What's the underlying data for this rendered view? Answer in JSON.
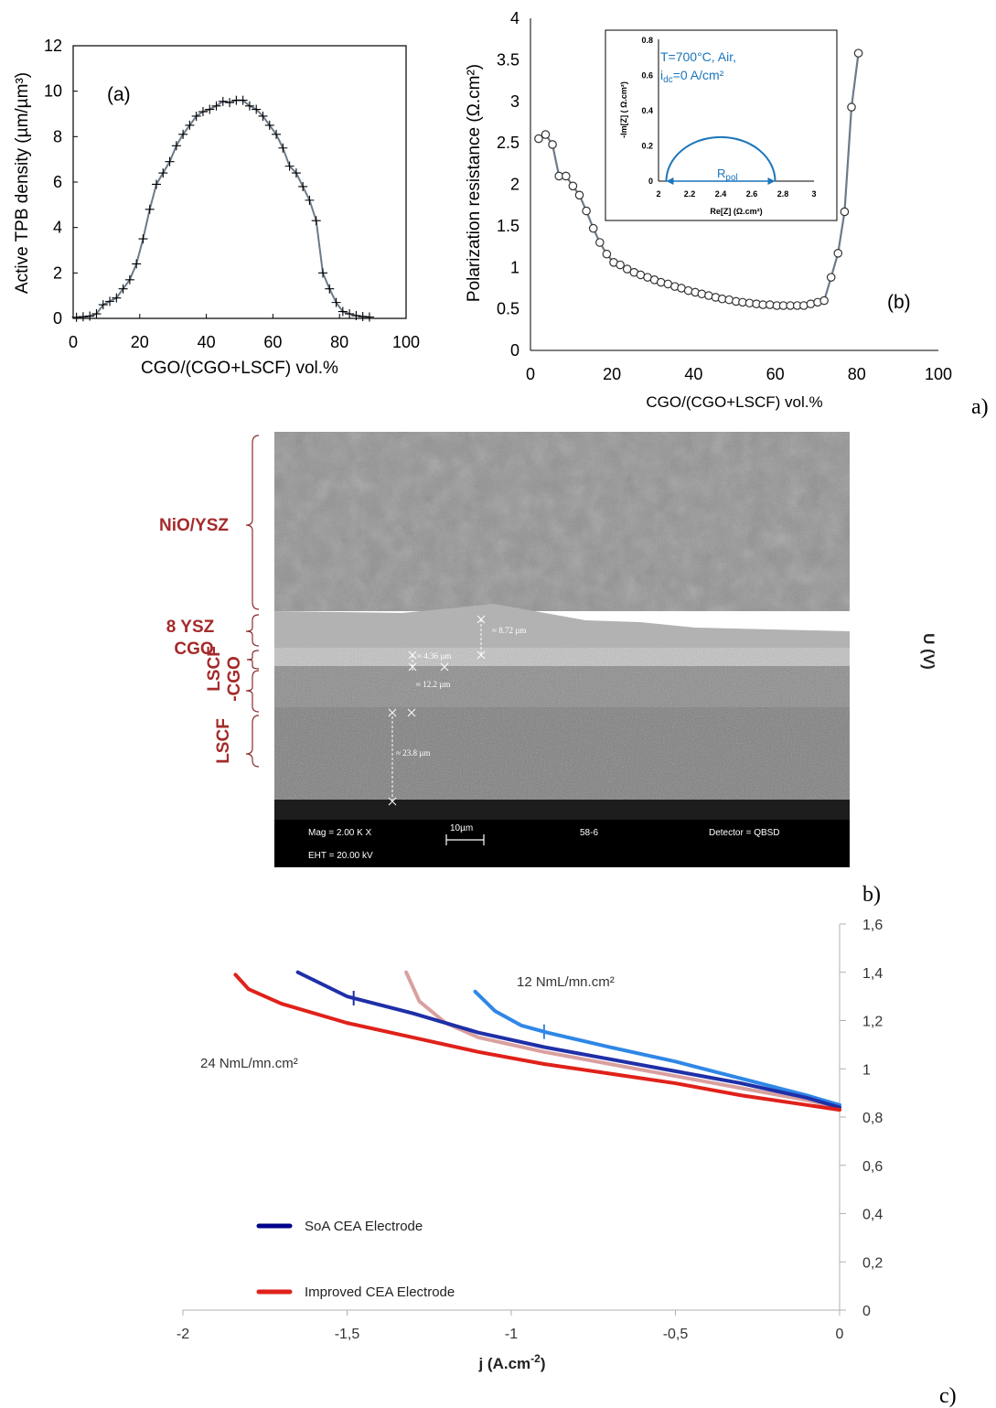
{
  "figure_labels": {
    "a": "a)",
    "b": "b)",
    "c": "c)"
  },
  "chart_data": [
    {
      "type": "line",
      "panel_label": "(a)",
      "xlabel": "CGO/(CGO+LSCF) vol.%",
      "ylabel": "Active TPB density (µm/µm³)",
      "xlim": [
        0,
        100
      ],
      "ylim": [
        0,
        12
      ],
      "xticks": [
        "0",
        "20",
        "40",
        "60",
        "80",
        "100"
      ],
      "yticks": [
        "0",
        "2",
        "4",
        "6",
        "8",
        "10",
        "12"
      ],
      "marker": "plus",
      "x": [
        1,
        3,
        5,
        7,
        9,
        11,
        13,
        15,
        17,
        19,
        21,
        23,
        25,
        27,
        29,
        31,
        33,
        35,
        37,
        39,
        41,
        43,
        45,
        47,
        49,
        51,
        53,
        55,
        57,
        59,
        61,
        63,
        65,
        67,
        69,
        71,
        73,
        75,
        77,
        79,
        81,
        83,
        85,
        87,
        89
      ],
      "y": [
        0.05,
        0.07,
        0.1,
        0.2,
        0.6,
        0.75,
        0.9,
        1.3,
        1.7,
        2.4,
        3.5,
        4.8,
        5.9,
        6.4,
        6.9,
        7.6,
        8.1,
        8.5,
        8.9,
        9.1,
        9.2,
        9.35,
        9.55,
        9.5,
        9.6,
        9.6,
        9.35,
        9.2,
        8.9,
        8.5,
        8.1,
        7.5,
        6.7,
        6.4,
        5.8,
        5.2,
        4.3,
        2.0,
        1.3,
        0.7,
        0.3,
        0.2,
        0.12,
        0.08,
        0.06
      ]
    },
    {
      "type": "line",
      "panel_label": "(b)",
      "xlabel": "CGO/(CGO+LSCF)  vol.%",
      "ylabel": "Polarization resistance (Ω.cm²)",
      "xlim": [
        0,
        100
      ],
      "ylim": [
        0,
        4
      ],
      "xticks": [
        "0",
        "20",
        "40",
        "60",
        "80",
        "100"
      ],
      "yticks": [
        "0",
        "0.5",
        "1",
        "1.5",
        "2",
        "2.5",
        "3",
        "3.5",
        "4"
      ],
      "marker": "circle",
      "x": [
        2,
        3.7,
        5.4,
        7,
        8.7,
        10.4,
        12,
        13.7,
        15.4,
        17,
        18.7,
        20.4,
        22,
        23.7,
        25.4,
        27,
        28.7,
        30.4,
        32,
        33.7,
        35.4,
        37,
        38.7,
        40.4,
        42,
        43.7,
        45.4,
        47,
        48.7,
        50.4,
        52,
        53.7,
        55.4,
        57,
        58.7,
        60.4,
        62,
        63.7,
        65.4,
        67,
        68.7,
        70.4,
        72,
        73.7,
        75.4,
        77,
        78.7,
        80.4
      ],
      "y": [
        2.55,
        2.6,
        2.48,
        2.1,
        2.1,
        1.98,
        1.87,
        1.68,
        1.47,
        1.3,
        1.16,
        1.06,
        1.03,
        0.98,
        0.94,
        0.91,
        0.88,
        0.85,
        0.82,
        0.8,
        0.77,
        0.75,
        0.72,
        0.7,
        0.68,
        0.66,
        0.64,
        0.62,
        0.61,
        0.59,
        0.58,
        0.57,
        0.56,
        0.55,
        0.55,
        0.54,
        0.54,
        0.54,
        0.54,
        0.54,
        0.56,
        0.58,
        0.6,
        0.88,
        1.17,
        1.67,
        2.93,
        3.58
      ],
      "inset": {
        "xlabel": "Re[Z] (Ω.cm²)",
        "ylabel": "-Im[Z] ( Ω.cm²)",
        "xticks": [
          "2",
          "2.2",
          "2.4",
          "2.6",
          "2.8",
          "3"
        ],
        "yticks": [
          "0",
          "0.2",
          "0.4",
          "0.6",
          "0.8"
        ],
        "xlim": [
          2,
          3
        ],
        "ylim": [
          0,
          0.8
        ],
        "conditions_line1": "T=700°C, Air,",
        "conditions_line2_prefix": "i",
        "conditions_line2_sub": "dc",
        "conditions_line2_suffix": "=0 A/cm²",
        "arc_label_main": "R",
        "arc_label_sub": "pol",
        "arc_start": 2.05,
        "arc_end": 2.75,
        "arc_peak": 0.25,
        "color": "#1b75bb"
      }
    },
    {
      "type": "line",
      "xlabel_main": "j (A.cm",
      "xlabel_sup": "-2",
      "xlabel_end": ")",
      "ylabel": "U (V)",
      "xlim": [
        -2,
        0
      ],
      "ylim": [
        0,
        1.6
      ],
      "xticks": [
        "-2",
        "-1,5",
        "-1",
        "-0,5",
        "0"
      ],
      "yticks": [
        "0",
        "0,2",
        "0,4",
        "0,6",
        "0,8",
        "1",
        "1,2",
        "1,4",
        "1,6"
      ],
      "annotations": [
        "12 NmL/mn.cm²",
        "24 NmL/mn.cm²"
      ],
      "legend": [
        {
          "label": "SoA CEA Electrode",
          "color": "#00008b"
        },
        {
          "label": "Improved CEA Electrode",
          "color": "#e0211a"
        }
      ],
      "series": [
        {
          "name": "SoA CEA Electrode",
          "color": "#1f2fa8",
          "x": [
            -1.65,
            -1.5,
            -1.3,
            -1.1,
            -0.9,
            -0.7,
            -0.5,
            -0.3,
            -0.1,
            0
          ],
          "y": [
            1.4,
            1.3,
            1.23,
            1.15,
            1.09,
            1.04,
            0.99,
            0.94,
            0.88,
            0.84
          ]
        },
        {
          "name": "Improved CEA Electrode",
          "color": "#e0211a",
          "x": [
            -1.84,
            -1.8,
            -1.7,
            -1.5,
            -1.3,
            -1.1,
            -0.9,
            -0.7,
            -0.5,
            -0.3,
            -0.1,
            0
          ],
          "y": [
            1.39,
            1.33,
            1.27,
            1.19,
            1.13,
            1.07,
            1.02,
            0.98,
            0.94,
            0.89,
            0.85,
            0.83
          ]
        },
        {
          "name": "",
          "color": "#d9a0a0",
          "x": [
            -1.32,
            -1.28,
            -1.2,
            -1.1,
            -0.9,
            -0.7,
            -0.5,
            -0.3,
            -0.1,
            0
          ],
          "y": [
            1.4,
            1.28,
            1.19,
            1.13,
            1.07,
            1.02,
            0.97,
            0.92,
            0.87,
            0.84
          ]
        },
        {
          "name": "",
          "color": "#2f87e6",
          "x": [
            -1.11,
            -1.05,
            -0.97,
            -0.89,
            -0.7,
            -0.5,
            -0.3,
            -0.1,
            0
          ],
          "y": [
            1.32,
            1.24,
            1.18,
            1.15,
            1.09,
            1.03,
            0.96,
            0.89,
            0.85
          ]
        }
      ]
    }
  ],
  "sem": {
    "layers": [
      "NiO/YSZ",
      "8 YSZ",
      "CGO",
      "LSCF",
      "-CGO",
      "LSCF"
    ],
    "measurements": [
      "≈ 8.72 µm",
      "≈ 4.36 µm",
      "≈ 12.2 µm",
      "≈ 23.8 µm"
    ],
    "info_bar": {
      "mag": "Mag =  2.00 K X",
      "eht": "EHT = 20.00 kV",
      "scale": "10µm",
      "sample": "58-6",
      "detector": "Detector = QBSD"
    }
  }
}
